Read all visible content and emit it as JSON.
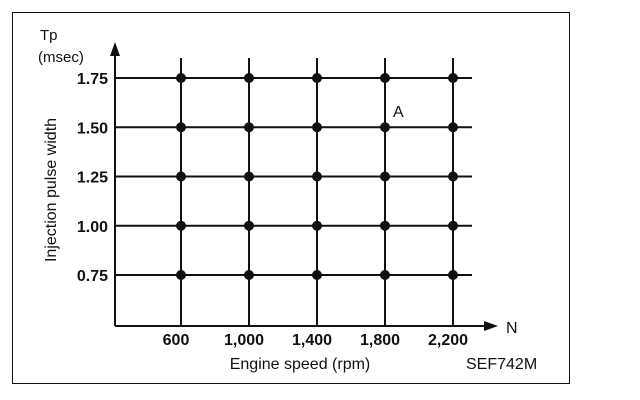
{
  "chart_data": {
    "type": "scatter",
    "ylabel": "Injection pulse width",
    "y_axis_symbol": "Tp",
    "y_axis_unit": "(msec)",
    "xlabel": "Engine speed (rpm)",
    "x_axis_symbol": "N",
    "x": [
      600,
      1000,
      1400,
      1800,
      2200
    ],
    "x_tick_labels": [
      "600",
      "1,000",
      "1,400",
      "1,800",
      "2,200"
    ],
    "y": [
      0.75,
      1.0,
      1.25,
      1.5,
      1.75
    ],
    "y_tick_labels": [
      "0.75",
      "1.00",
      "1.25",
      "1.50",
      "1.75"
    ],
    "grid": true,
    "series": [
      {
        "points": [
          [
            600,
            0.75
          ],
          [
            1000,
            0.75
          ],
          [
            1400,
            0.75
          ],
          [
            1800,
            0.75
          ],
          [
            2200,
            0.75
          ],
          [
            600,
            1.0
          ],
          [
            1000,
            1.0
          ],
          [
            1400,
            1.0
          ],
          [
            1800,
            1.0
          ],
          [
            2200,
            1.0
          ],
          [
            600,
            1.25
          ],
          [
            1000,
            1.25
          ],
          [
            1400,
            1.25
          ],
          [
            1800,
            1.25
          ],
          [
            2200,
            1.25
          ],
          [
            600,
            1.5
          ],
          [
            1000,
            1.5
          ],
          [
            1400,
            1.5
          ],
          [
            1800,
            1.5
          ],
          [
            2200,
            1.5
          ],
          [
            600,
            1.75
          ],
          [
            1000,
            1.75
          ],
          [
            1400,
            1.75
          ],
          [
            1800,
            1.75
          ],
          [
            2200,
            1.75
          ]
        ]
      }
    ],
    "annotations": [
      {
        "text": "A",
        "x": 1800,
        "y": 1.5
      }
    ],
    "figure_code": "SEF742M"
  },
  "colors": {
    "ink": "#111111",
    "background": "#ffffff"
  }
}
